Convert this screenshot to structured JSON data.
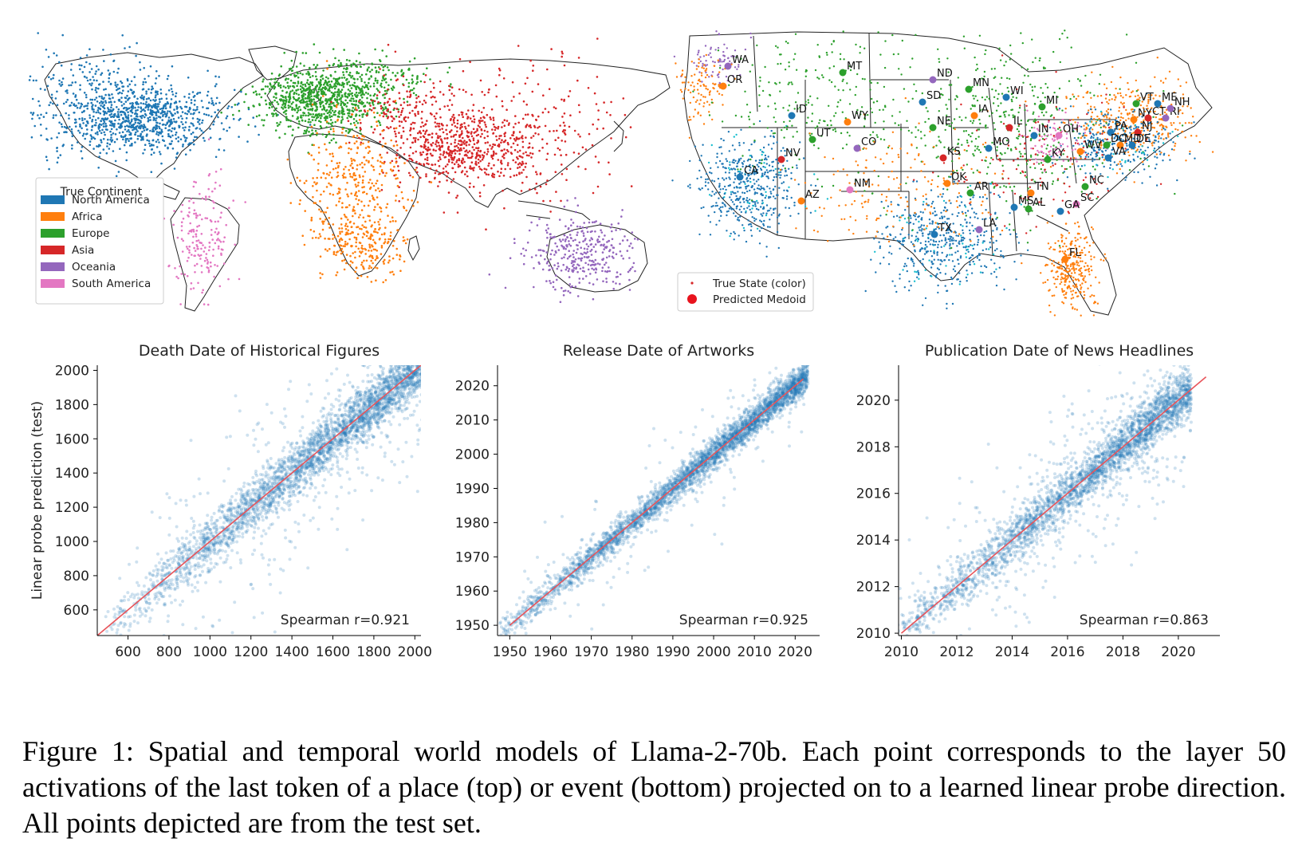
{
  "world_map": {
    "legend_title": "True Continent",
    "continents": [
      {
        "name": "North America",
        "color": "#1f77b4"
      },
      {
        "name": "Africa",
        "color": "#ff7f0e"
      },
      {
        "name": "Europe",
        "color": "#2ca02c"
      },
      {
        "name": "Asia",
        "color": "#d62728"
      },
      {
        "name": "Oceania",
        "color": "#9467bd"
      },
      {
        "name": "South America",
        "color": "#e377c2"
      }
    ]
  },
  "us_map": {
    "legend": [
      {
        "label": "True State (color)",
        "marker": "small-dot"
      },
      {
        "label": "Predicted Medoid",
        "marker": "large-dot"
      }
    ],
    "state_labels": [
      "WA",
      "OR",
      "MT",
      "ND",
      "MN",
      "SD",
      "WI",
      "MI",
      "ID",
      "WY",
      "IA",
      "NE",
      "IL",
      "IN",
      "OH",
      "PA",
      "NY",
      "CT",
      "RI",
      "VT",
      "ME",
      "NH",
      "NJ",
      "DE",
      "MD",
      "DC",
      "WV",
      "VA",
      "UT",
      "CO",
      "NV",
      "KS",
      "MO",
      "KY",
      "CA",
      "OK",
      "AR",
      "TN",
      "NC",
      "SC",
      "AZ",
      "NM",
      "MS",
      "AL",
      "GA",
      "TX",
      "LA",
      "FL"
    ]
  },
  "chart_data": [
    {
      "type": "scatter",
      "title": "Death Date of Historical Figures",
      "ylabel": "Linear probe prediction (test)",
      "xlabel": "",
      "xlim": [
        450,
        2030
      ],
      "ylim": [
        450,
        2030
      ],
      "xticks": [
        600,
        800,
        1000,
        1200,
        1400,
        1600,
        1800,
        2000
      ],
      "yticks": [
        600,
        800,
        1000,
        1200,
        1400,
        1600,
        1800,
        2000
      ],
      "annotation": "Spearman r=0.921",
      "ideal_line": [
        [
          450,
          450
        ],
        [
          2030,
          2030
        ]
      ],
      "point_color": "#1f77b4",
      "line_color": "#e8545a"
    },
    {
      "type": "scatter",
      "title": "Release Date of Artworks",
      "ylabel": "",
      "xlabel": "",
      "xlim": [
        1947,
        2026
      ],
      "ylim": [
        1947,
        2026
      ],
      "xticks": [
        1950,
        1960,
        1970,
        1980,
        1990,
        2000,
        2010,
        2020
      ],
      "yticks": [
        1950,
        1960,
        1970,
        1980,
        1990,
        2000,
        2010,
        2020
      ],
      "annotation": "Spearman r=0.925",
      "ideal_line": [
        [
          1950,
          1950
        ],
        [
          2022,
          2022
        ]
      ],
      "point_color": "#1f77b4",
      "line_color": "#e8545a"
    },
    {
      "type": "scatter",
      "title": "Publication Date of News Headlines",
      "ylabel": "",
      "xlabel": "",
      "xlim": [
        2009.9,
        2021.5
      ],
      "ylim": [
        2009.9,
        2021.5
      ],
      "xticks": [
        2010,
        2012,
        2014,
        2016,
        2018,
        2020
      ],
      "yticks": [
        2010,
        2012,
        2014,
        2016,
        2018,
        2020
      ],
      "annotation": "Spearman r=0.863",
      "ideal_line": [
        [
          2010,
          2010
        ],
        [
          2021,
          2021
        ]
      ],
      "point_color": "#1f77b4",
      "line_color": "#e8545a"
    }
  ],
  "caption": "Figure 1: Spatial and temporal world models of Llama-2-70b. Each point corresponds to the layer 50 activations of the last token of a place (top) or event (bottom) projected on to a learned linear probe direction. All points depicted are from the test set."
}
